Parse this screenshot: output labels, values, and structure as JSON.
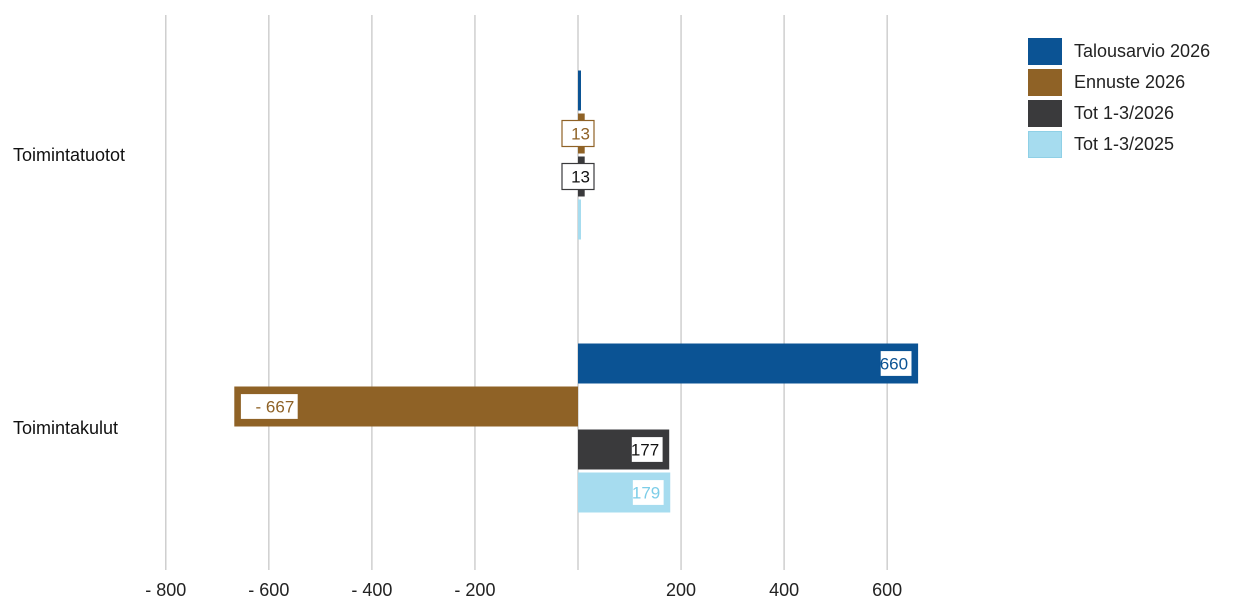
{
  "chart_data": {
    "type": "bar",
    "orientation": "horizontal",
    "categories": [
      "Toimintatuotot",
      "Toimintakulut"
    ],
    "series": [
      {
        "name": "Talousarvio 2026",
        "color": "#0b5394",
        "label_color": "#0b5394",
        "values": [
          4,
          660
        ],
        "labels": [
          "",
          "660"
        ]
      },
      {
        "name": "Ennuste 2026",
        "color": "#8f6226",
        "label_color": "#8f6226",
        "values": [
          13,
          -667
        ],
        "labels": [
          "13",
          "-  667"
        ]
      },
      {
        "name": "Tot 1-3/2026",
        "color": "#3a3a3c",
        "label_color": "#111111",
        "values": [
          13,
          177
        ],
        "labels": [
          "13",
          "177"
        ]
      },
      {
        "name": "Tot 1-3/2025",
        "color": "#a6dcef",
        "label_color": "#7ccde8",
        "values": [
          3,
          179
        ],
        "labels": [
          "",
          "179"
        ]
      }
    ],
    "x_ticks": [
      -800,
      -600,
      -400,
      -200,
      200,
      400,
      600
    ],
    "x_tick_labels": [
      "-  800",
      "-  600",
      "-  400",
      "-  200",
      "200",
      "400",
      "600"
    ],
    "xlim": [
      -800,
      660
    ],
    "grid": true,
    "legend_position": "top-right"
  }
}
